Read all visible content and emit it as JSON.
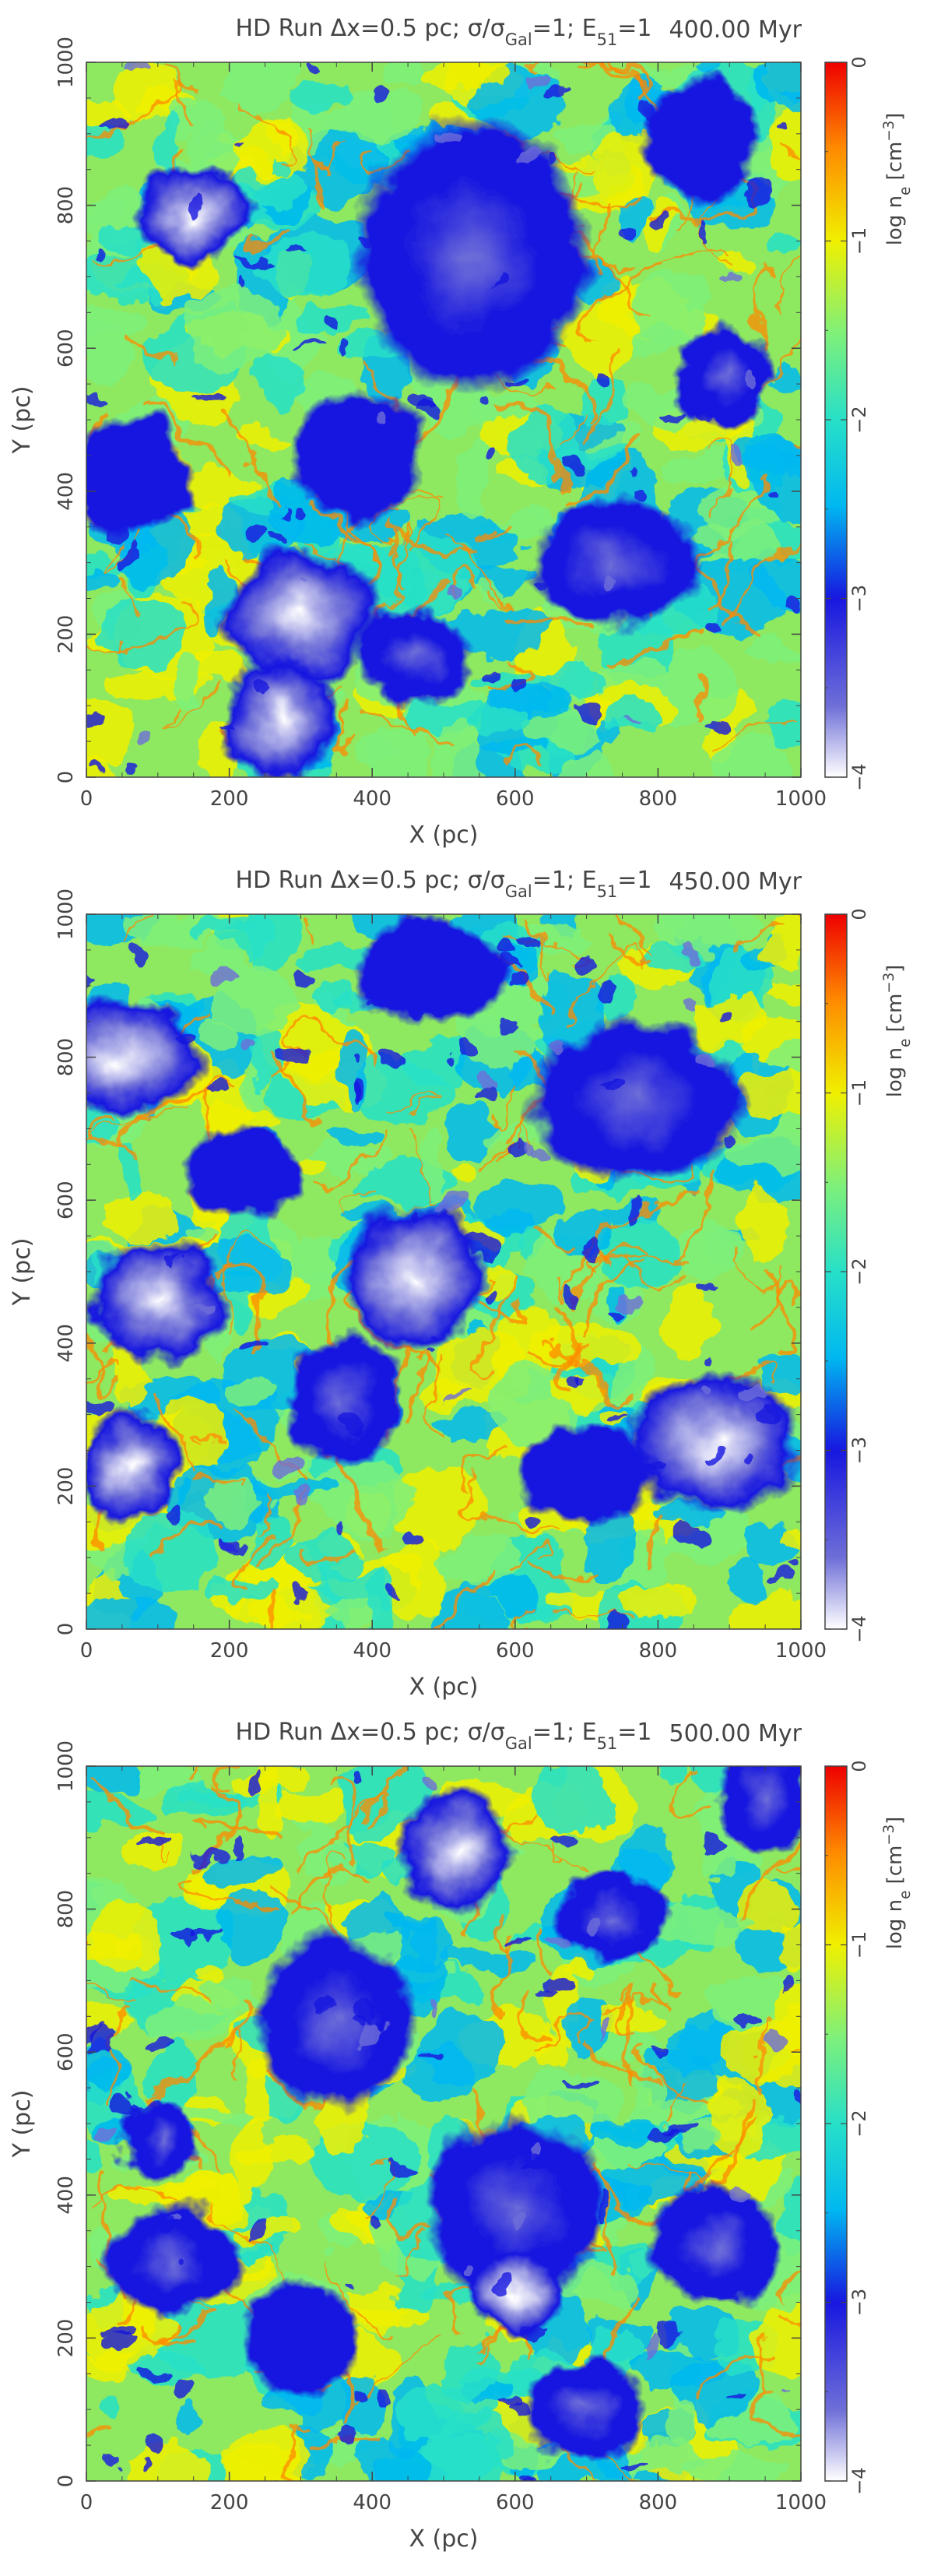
{
  "colormap": [
    {
      "stop": 0.0,
      "color": "#ffffff"
    },
    {
      "stop": 0.1,
      "color": "#6e6ed8"
    },
    {
      "stop": 0.25,
      "color": "#1717e0"
    },
    {
      "stop": 0.38,
      "color": "#00b8f0"
    },
    {
      "stop": 0.5,
      "color": "#27e0c8"
    },
    {
      "stop": 0.62,
      "color": "#7ef07a"
    },
    {
      "stop": 0.75,
      "color": "#f0f000"
    },
    {
      "stop": 0.88,
      "color": "#ff8a00"
    },
    {
      "stop": 1.0,
      "color": "#ee0000"
    }
  ],
  "chart_data": [
    {
      "type": "heatmap",
      "title_prefix": "HD Run ",
      "title_sym_dx": "Δx",
      "title_dx_value": "=0.5 pc; ",
      "title_sym_sigma": "σ",
      "title_slash": "/",
      "title_sigma2": "σ",
      "title_sub_gal": "Gal",
      "title_eq1": "=1; ",
      "title_E": "E",
      "title_sub51": "51",
      "title_eq1b": "=1",
      "time_label": "400.00 Myr",
      "xlabel": "X (pc)",
      "ylabel": "Y (pc)",
      "xlim": [
        0,
        1000
      ],
      "ylim": [
        0,
        1000
      ],
      "xticks": [
        "0",
        "200",
        "400",
        "600",
        "800",
        "1000"
      ],
      "yticks": [
        "0",
        "200",
        "400",
        "600",
        "800",
        "1000"
      ],
      "colorbar": {
        "label_main": "log n",
        "label_sub": "e",
        "label_unit_open": " [cm",
        "label_exp": "−3",
        "label_unit_close": "]",
        "range": [
          -4,
          0
        ],
        "ticks": [
          "−4",
          "−3",
          "−2",
          "−1",
          "0"
        ]
      },
      "low_density_regions": [
        {
          "x": 150,
          "y": 790,
          "r": 60,
          "level": 0.05
        },
        {
          "x": 300,
          "y": 230,
          "r": 80,
          "level": 0.08
        },
        {
          "x": 270,
          "y": 80,
          "r": 60,
          "level": 0.04
        },
        {
          "x": 540,
          "y": 730,
          "r": 120,
          "level": 0.12
        },
        {
          "x": 890,
          "y": 560,
          "r": 50,
          "level": 0.25
        },
        {
          "x": 740,
          "y": 300,
          "r": 90,
          "level": 0.2
        },
        {
          "x": 460,
          "y": 170,
          "r": 60,
          "level": 0.18
        },
        {
          "x": 60,
          "y": 420,
          "r": 60,
          "level": 0.3
        },
        {
          "x": 380,
          "y": 450,
          "r": 70,
          "level": 0.3
        },
        {
          "x": 860,
          "y": 890,
          "r": 60,
          "level": 0.3
        }
      ]
    },
    {
      "type": "heatmap",
      "title_prefix": "HD Run ",
      "title_sym_dx": "Δx",
      "title_dx_value": "=0.5 pc; ",
      "title_sym_sigma": "σ",
      "title_slash": "/",
      "title_sigma2": "σ",
      "title_sub_gal": "Gal",
      "title_eq1": "=1; ",
      "title_E": "E",
      "title_sub51": "51",
      "title_eq1b": "=1",
      "time_label": "450.00 Myr",
      "xlabel": "X (pc)",
      "ylabel": "Y (pc)",
      "xlim": [
        0,
        1000
      ],
      "ylim": [
        0,
        1000
      ],
      "xticks": [
        "0",
        "200",
        "400",
        "600",
        "800",
        "1000"
      ],
      "yticks": [
        "0",
        "200",
        "400",
        "600",
        "800",
        "1000"
      ],
      "colorbar": {
        "label_main": "log n",
        "label_sub": "e",
        "label_unit_open": " [cm",
        "label_exp": "−3",
        "label_unit_close": "]",
        "range": [
          -4,
          0
        ],
        "ticks": [
          "−4",
          "−3",
          "−2",
          "−1",
          "0"
        ]
      },
      "low_density_regions": [
        {
          "x": 50,
          "y": 800,
          "r": 80,
          "level": 0.1
        },
        {
          "x": 100,
          "y": 460,
          "r": 70,
          "level": 0.08
        },
        {
          "x": 60,
          "y": 230,
          "r": 50,
          "level": 0.1
        },
        {
          "x": 460,
          "y": 490,
          "r": 70,
          "level": 0.1
        },
        {
          "x": 770,
          "y": 740,
          "r": 110,
          "level": 0.15
        },
        {
          "x": 880,
          "y": 260,
          "r": 90,
          "level": 0.05
        },
        {
          "x": 360,
          "y": 320,
          "r": 60,
          "level": 0.25
        },
        {
          "x": 480,
          "y": 920,
          "r": 80,
          "level": 0.3
        },
        {
          "x": 220,
          "y": 640,
          "r": 60,
          "level": 0.3
        },
        {
          "x": 700,
          "y": 220,
          "r": 70,
          "level": 0.3
        }
      ]
    },
    {
      "type": "heatmap",
      "title_prefix": "HD Run ",
      "title_sym_dx": "Δx",
      "title_dx_value": "=0.5 pc; ",
      "title_sym_sigma": "σ",
      "title_slash": "/",
      "title_sigma2": "σ",
      "title_sub_gal": "Gal",
      "title_eq1": "=1; ",
      "title_E": "E",
      "title_sub51": "51",
      "title_eq1b": "=1",
      "time_label": "500.00 Myr",
      "xlabel": "X (pc)",
      "ylabel": "Y (pc)",
      "xlim": [
        0,
        1000
      ],
      "ylim": [
        0,
        1000
      ],
      "xticks": [
        "0",
        "200",
        "400",
        "600",
        "800",
        "1000"
      ],
      "yticks": [
        "0",
        "200",
        "400",
        "600",
        "800",
        "1000"
      ],
      "colorbar": {
        "label_main": "log n",
        "label_sub": "e",
        "label_unit_open": " [cm",
        "label_exp": "−3",
        "label_unit_close": "]",
        "range": [
          -4,
          0
        ],
        "ticks": [
          "−4",
          "−3",
          "−2",
          "−1",
          "0"
        ]
      },
      "low_density_regions": [
        {
          "x": 350,
          "y": 640,
          "r": 80,
          "level": 0.15
        },
        {
          "x": 520,
          "y": 880,
          "r": 60,
          "level": 0.05
        },
        {
          "x": 740,
          "y": 790,
          "r": 60,
          "level": 0.2
        },
        {
          "x": 600,
          "y": 380,
          "r": 90,
          "level": 0.15
        },
        {
          "x": 600,
          "y": 260,
          "r": 50,
          "level": 0.05
        },
        {
          "x": 120,
          "y": 310,
          "r": 70,
          "level": 0.15
        },
        {
          "x": 700,
          "y": 100,
          "r": 60,
          "level": 0.15
        },
        {
          "x": 880,
          "y": 330,
          "r": 70,
          "level": 0.2
        },
        {
          "x": 950,
          "y": 960,
          "r": 50,
          "level": 0.2
        },
        {
          "x": 300,
          "y": 200,
          "r": 60,
          "level": 0.3
        },
        {
          "x": 100,
          "y": 480,
          "r": 40,
          "level": 0.2
        }
      ]
    }
  ]
}
